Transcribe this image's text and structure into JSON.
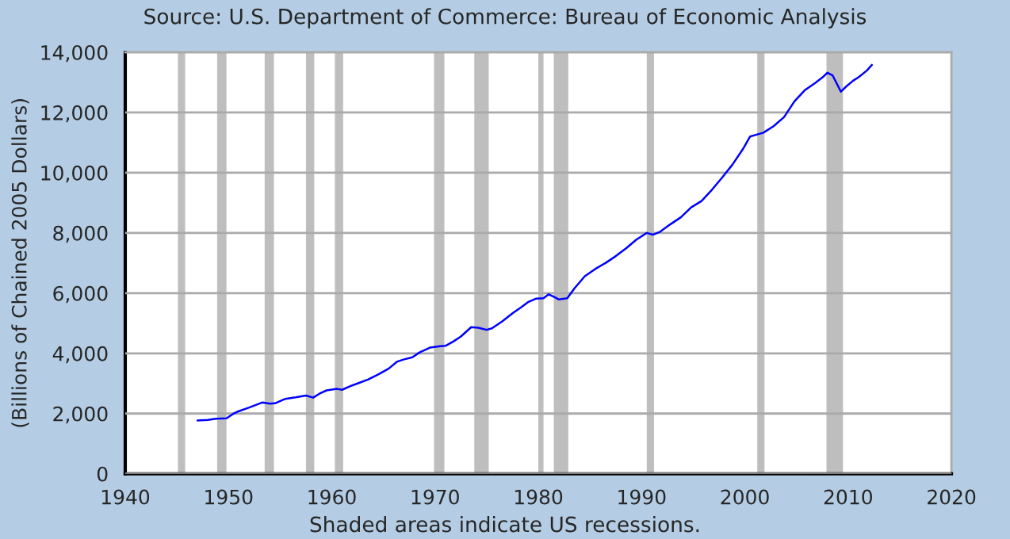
{
  "chart_data": {
    "type": "line",
    "ylabel": "(Billions of Chained 2005 Dollars)",
    "annotations": [
      "Source: U.S. Department of Commerce: Bureau of Economic Analysis",
      "Shaded areas indicate US recessions."
    ],
    "series": [
      {
        "color": "#0000ff",
        "x": [
          1947.0,
          1948.0,
          1948.8,
          1949.8,
          1950.5,
          1951.0,
          1952.0,
          1953.3,
          1954.0,
          1954.5,
          1955.5,
          1956.5,
          1957.5,
          1958.2,
          1958.8,
          1959.5,
          1960.5,
          1961.0,
          1961.8,
          1962.5,
          1963.5,
          1964.5,
          1965.5,
          1966.3,
          1967.0,
          1967.8,
          1968.5,
          1969.5,
          1970.5,
          1971.0,
          1971.8,
          1972.5,
          1973.5,
          1974.2,
          1975.0,
          1975.5,
          1976.5,
          1977.5,
          1978.3,
          1979.0,
          1979.8,
          1980.5,
          1981.0,
          1981.5,
          1982.0,
          1982.8,
          1983.5,
          1984.5,
          1985.5,
          1986.5,
          1987.5,
          1988.5,
          1989.5,
          1990.5,
          1991.1,
          1991.8,
          1992.8,
          1993.8,
          1994.8,
          1995.8,
          1996.8,
          1997.8,
          1998.8,
          1999.8,
          2000.5,
          2001.0,
          2001.8,
          2002.8,
          2003.8,
          2004.8,
          2005.8,
          2006.8,
          2007.5,
          2008.0,
          2008.5,
          2009.3,
          2009.8,
          2010.5,
          2011.0,
          2011.8,
          2012.3
        ],
        "values": [
          1770,
          1790,
          1830,
          1840,
          2000,
          2080,
          2200,
          2370,
          2330,
          2340,
          2490,
          2540,
          2600,
          2530,
          2660,
          2770,
          2820,
          2790,
          2910,
          3000,
          3130,
          3300,
          3490,
          3720,
          3800,
          3870,
          4030,
          4190,
          4240,
          4250,
          4400,
          4560,
          4870,
          4850,
          4780,
          4830,
          5060,
          5330,
          5520,
          5700,
          5820,
          5830,
          5960,
          5880,
          5790,
          5830,
          6160,
          6560,
          6800,
          7000,
          7230,
          7490,
          7780,
          8000,
          7940,
          8040,
          8290,
          8520,
          8850,
          9060,
          9430,
          9840,
          10270,
          10780,
          11200,
          11250,
          11330,
          11550,
          11850,
          12370,
          12740,
          12980,
          13160,
          13320,
          13230,
          12690,
          12860,
          13060,
          13170,
          13390,
          13580
        ]
      }
    ],
    "xlim": [
      1940,
      2020
    ],
    "xticks": [
      1940,
      1950,
      1960,
      1970,
      1980,
      1990,
      2000,
      2010,
      2020
    ],
    "ylim": [
      0,
      14000
    ],
    "yticks": [
      0,
      {
        "value": 2000,
        "label": "2,000"
      },
      {
        "value": 4000,
        "label": "4,000"
      },
      {
        "value": 6000,
        "label": "6,000"
      },
      {
        "value": 8000,
        "label": "8,000"
      },
      {
        "value": 10000,
        "label": "10,000"
      },
      {
        "value": 12000,
        "label": "12,000"
      },
      {
        "value": 14000,
        "label": "14,000"
      }
    ],
    "grid": "y",
    "bands": [
      {
        "axis": "x",
        "from": 1945.1,
        "to": 1945.8,
        "color": "#bebebe"
      },
      {
        "axis": "x",
        "from": 1948.9,
        "to": 1949.8,
        "color": "#bebebe"
      },
      {
        "axis": "x",
        "from": 1953.5,
        "to": 1954.4,
        "color": "#bebebe"
      },
      {
        "axis": "x",
        "from": 1957.5,
        "to": 1958.3,
        "color": "#bebebe"
      },
      {
        "axis": "x",
        "from": 1960.3,
        "to": 1961.1,
        "color": "#bebebe"
      },
      {
        "axis": "x",
        "from": 1969.9,
        "to": 1970.9,
        "color": "#bebebe"
      },
      {
        "axis": "x",
        "from": 1973.8,
        "to": 1975.2,
        "color": "#bebebe"
      },
      {
        "axis": "x",
        "from": 1980.0,
        "to": 1980.5,
        "color": "#bebebe"
      },
      {
        "axis": "x",
        "from": 1981.5,
        "to": 1982.9,
        "color": "#bebebe"
      },
      {
        "axis": "x",
        "from": 1990.5,
        "to": 1991.2,
        "color": "#bebebe"
      },
      {
        "axis": "x",
        "from": 2001.2,
        "to": 2001.9,
        "color": "#bebebe"
      },
      {
        "axis": "x",
        "from": 2007.9,
        "to": 2009.5,
        "color": "#bebebe"
      }
    ]
  }
}
